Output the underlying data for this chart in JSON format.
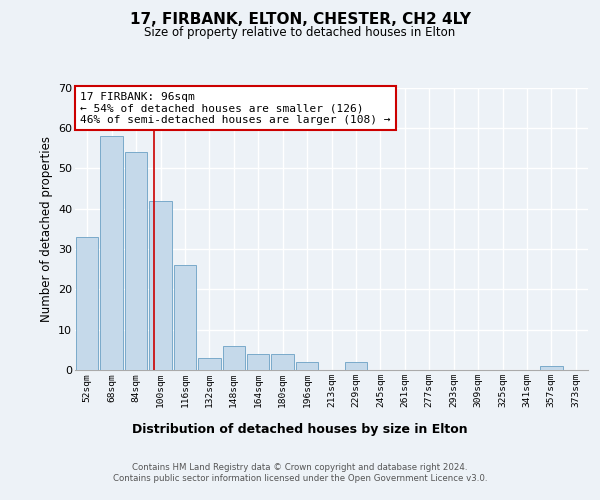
{
  "title": "17, FIRBANK, ELTON, CHESTER, CH2 4LY",
  "subtitle": "Size of property relative to detached houses in Elton",
  "xlabel": "Distribution of detached houses by size in Elton",
  "ylabel": "Number of detached properties",
  "bar_labels": [
    "52sqm",
    "68sqm",
    "84sqm",
    "100sqm",
    "116sqm",
    "132sqm",
    "148sqm",
    "164sqm",
    "180sqm",
    "196sqm",
    "213sqm",
    "229sqm",
    "245sqm",
    "261sqm",
    "277sqm",
    "293sqm",
    "309sqm",
    "325sqm",
    "341sqm",
    "357sqm",
    "373sqm"
  ],
  "bar_values": [
    33,
    58,
    54,
    42,
    26,
    3,
    6,
    4,
    4,
    2,
    0,
    2,
    0,
    0,
    0,
    0,
    0,
    0,
    0,
    1,
    0
  ],
  "bar_color": "#c5d9ea",
  "bar_edge_color": "#7aaaca",
  "property_line_label": "17 FIRBANK: 96sqm",
  "annotation_line1": "← 54% of detached houses are smaller (126)",
  "annotation_line2": "46% of semi-detached houses are larger (108) →",
  "annotation_box_color": "#ffffff",
  "annotation_box_edge": "#cc0000",
  "vline_color": "#cc0000",
  "vline_x": 2.75,
  "ylim": [
    0,
    70
  ],
  "yticks": [
    0,
    10,
    20,
    30,
    40,
    50,
    60,
    70
  ],
  "footer_line1": "Contains HM Land Registry data © Crown copyright and database right 2024.",
  "footer_line2": "Contains public sector information licensed under the Open Government Licence v3.0.",
  "background_color": "#edf2f7",
  "plot_bg_color": "#edf2f7",
  "grid_color": "#ffffff"
}
